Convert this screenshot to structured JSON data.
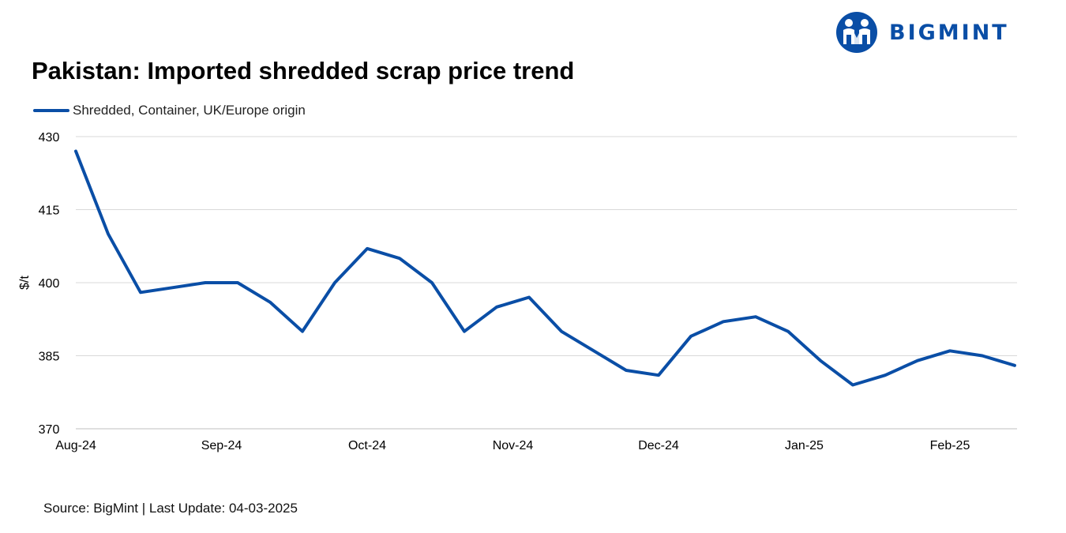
{
  "brand": {
    "name": "BIGMINT",
    "color": "#0a4ea6",
    "icon": "bigmint-people-logo-icon"
  },
  "chart_data": {
    "type": "line",
    "title": "Pakistan: Imported shredded scrap price trend",
    "xlabel": "",
    "ylabel": "$/t",
    "ylim": [
      370,
      430
    ],
    "yticks": [
      370,
      385,
      400,
      415,
      430
    ],
    "x_tick_labels": [
      "Aug-24",
      "Sep-24",
      "Oct-24",
      "Nov-24",
      "Dec-24",
      "Jan-25",
      "Feb-25"
    ],
    "x_tick_positions": [
      0,
      4.5,
      9,
      13.5,
      18,
      22.5,
      27
    ],
    "grid": "horizontal",
    "legend_position": "top-left",
    "series": [
      {
        "name": "Shredded, Container, UK/Europe origin",
        "color": "#0a4ea6",
        "values": [
          427,
          410,
          398,
          399,
          400,
          400,
          396,
          390,
          400,
          407,
          405,
          400,
          390,
          395,
          397,
          390,
          386,
          382,
          381,
          389,
          392,
          393,
          390,
          384,
          379,
          381,
          384,
          386,
          385,
          383
        ]
      }
    ]
  },
  "footer": {
    "source_text": "Source: BigMint | Last Update: 04-03-2025"
  }
}
